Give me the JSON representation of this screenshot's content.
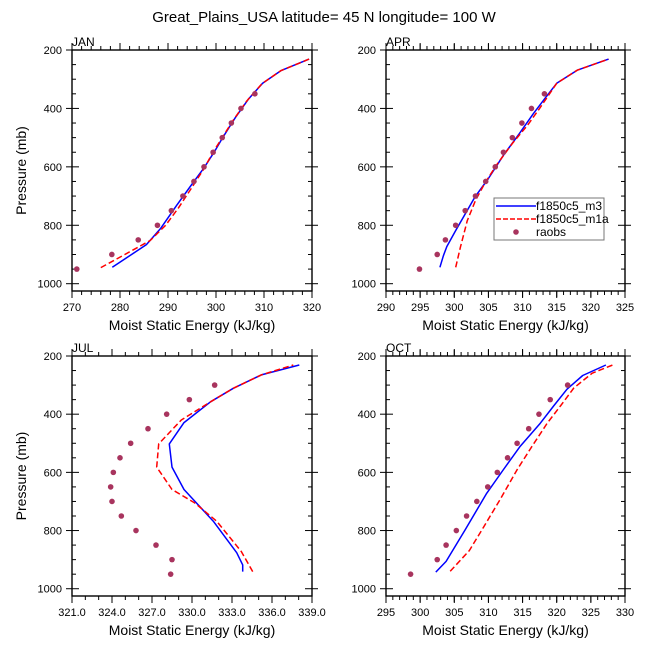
{
  "figure_title": "Great_Plains_USA  latitude= 45 N longitude= 100 W",
  "colors": {
    "f1850c5_m3": "#0000ff",
    "f1850c5_m1a": "#ff0000",
    "raobs": "#a8345e"
  },
  "legend": {
    "entries": [
      {
        "name": "f1850c5_m3",
        "style": "solid line"
      },
      {
        "name": "f1850c5_m1a",
        "style": "dashed line"
      },
      {
        "name": "raobs",
        "style": "marker"
      }
    ]
  },
  "chart_data": [
    {
      "type": "line",
      "title": "JAN",
      "xlabel": "Moist Static Energy (kJ/kg)",
      "ylabel": "Pressure (mb)",
      "xlim": [
        270,
        320
      ],
      "ylim": [
        200,
        1025
      ],
      "y_inverted": true,
      "xticks": [
        270,
        280,
        290,
        300,
        310,
        320
      ],
      "xtick_labels": [
        "270",
        "280",
        "290",
        "300",
        "310",
        "320"
      ],
      "x_minor_step": 2,
      "yticks": [
        200,
        400,
        600,
        800,
        1000
      ],
      "ytick_labels": [
        "200",
        "400",
        "600",
        "800",
        "1000"
      ],
      "y_minor_step": 50,
      "show_ylabel": true,
      "legend": false,
      "series": [
        {
          "name": "f1850c5_m3",
          "style": "solid",
          "x": [
            278.4,
            281.5,
            285.5,
            288.5,
            291.8,
            294.8,
            297.4,
            299.6,
            301.5,
            304.0,
            306.7,
            309.7,
            313.5,
            319.4
          ],
          "y": [
            944,
            910,
            866,
            810,
            732,
            664,
            606,
            550,
            497,
            432,
            369,
            314,
            271,
            231
          ]
        },
        {
          "name": "f1850c5_m1a",
          "style": "dashed",
          "x": [
            276.0,
            281.0,
            286.3,
            289.5,
            292.2,
            295.0,
            297.5,
            299.4,
            301.3,
            303.6,
            306.4,
            309.6,
            313.5,
            319.4
          ],
          "y": [
            945,
            900,
            852,
            800,
            740,
            670,
            606,
            550,
            500,
            440,
            375,
            315,
            271,
            231
          ]
        },
        {
          "name": "raobs",
          "style": "marker",
          "x": [
            271.0,
            278.3,
            283.8,
            287.8,
            290.7,
            293.1,
            295.4,
            297.5,
            299.4,
            301.3,
            303.2,
            305.2,
            308.1
          ],
          "y": [
            950,
            900,
            850,
            800,
            750,
            700,
            650,
            600,
            550,
            500,
            450,
            400,
            350
          ]
        }
      ]
    },
    {
      "type": "line",
      "title": "APR",
      "xlabel": "Moist Static Energy (kJ/kg)",
      "ylabel": "",
      "xlim": [
        290,
        325
      ],
      "ylim": [
        200,
        1025
      ],
      "y_inverted": true,
      "xticks": [
        290,
        295,
        300,
        305,
        310,
        315,
        320,
        325
      ],
      "xtick_labels": [
        "290",
        "295",
        "300",
        "305",
        "310",
        "315",
        "320",
        "325"
      ],
      "x_minor_step": 1,
      "yticks": [
        200,
        400,
        600,
        800,
        1000
      ],
      "ytick_labels": [
        "200",
        "400",
        "600",
        "800",
        "1000"
      ],
      "y_minor_step": 50,
      "show_ylabel": false,
      "legend": true,
      "legend_position": "center-right",
      "series": [
        {
          "name": "f1850c5_m3",
          "style": "solid",
          "x": [
            297.9,
            298.4,
            298.9,
            300.2,
            303.0,
            305.0,
            307.2,
            309.5,
            311.6,
            313.3,
            315.0,
            318.0,
            322.6
          ],
          "y": [
            944,
            904,
            873,
            818,
            704,
            640,
            560,
            487,
            417,
            365,
            314,
            269,
            231
          ]
        },
        {
          "name": "f1850c5_m1a",
          "style": "dashed",
          "x": [
            300.2,
            300.9,
            301.9,
            303.1,
            304.5,
            306.3,
            308.5,
            310.7,
            312.5,
            315.0,
            318.0,
            322.6
          ],
          "y": [
            944,
            875,
            784,
            715,
            655,
            590,
            520,
            458,
            400,
            314,
            269,
            231
          ]
        },
        {
          "name": "raobs",
          "style": "marker",
          "x": [
            294.9,
            297.5,
            298.7,
            300.2,
            301.6,
            303.1,
            304.6,
            306.0,
            307.2,
            308.5,
            309.9,
            311.3,
            313.2
          ],
          "y": [
            950,
            900,
            850,
            800,
            750,
            700,
            650,
            600,
            550,
            500,
            450,
            400,
            350
          ]
        }
      ]
    },
    {
      "type": "line",
      "title": "JUL",
      "xlabel": "Moist Static Energy (kJ/kg)",
      "ylabel": "Pressure (mb)",
      "xlim": [
        321.0,
        339.0
      ],
      "ylim": [
        200,
        1025
      ],
      "y_inverted": true,
      "xticks": [
        321,
        324,
        327,
        330,
        333,
        336,
        339
      ],
      "xtick_labels": [
        "321.0",
        "324.0",
        "327.0",
        "330.0",
        "333.0",
        "336.0",
        "339.0"
      ],
      "x_minor_step": 1,
      "yticks": [
        200,
        400,
        600,
        800,
        1000
      ],
      "ytick_labels": [
        "200",
        "400",
        "600",
        "800",
        "1000"
      ],
      "y_minor_step": 50,
      "show_ylabel": true,
      "legend": false,
      "series": [
        {
          "name": "f1850c5_m3",
          "style": "solid",
          "x": [
            333.8,
            333.8,
            333.35,
            331.6,
            329.4,
            328.5,
            328.3,
            329.4,
            331.4,
            333.1,
            335.2,
            338.05
          ],
          "y": [
            941,
            918,
            876,
            768,
            659,
            582,
            502,
            429,
            357,
            311,
            265,
            231
          ]
        },
        {
          "name": "f1850c5_m1a",
          "style": "dashed",
          "x": [
            334.55,
            333.7,
            331.85,
            330.2,
            328.5,
            327.35,
            327.5,
            329.2,
            331.4,
            333.1,
            335.2,
            337.6
          ],
          "y": [
            941,
            872,
            768,
            705,
            659,
            582,
            502,
            420,
            357,
            311,
            265,
            231
          ]
        },
        {
          "name": "raobs",
          "style": "marker",
          "x": [
            328.4,
            328.5,
            327.3,
            325.8,
            324.7,
            324.0,
            323.9,
            324.1,
            324.6,
            325.4,
            326.7,
            328.1,
            329.8,
            331.7
          ],
          "y": [
            950,
            900,
            850,
            800,
            750,
            700,
            650,
            600,
            550,
            500,
            450,
            400,
            350,
            300
          ]
        }
      ]
    },
    {
      "type": "line",
      "title": "OCT",
      "xlabel": "Moist Static Energy (kJ/kg)",
      "ylabel": "",
      "xlim": [
        295,
        330
      ],
      "ylim": [
        200,
        1025
      ],
      "y_inverted": true,
      "xticks": [
        295,
        300,
        305,
        310,
        315,
        320,
        325,
        330
      ],
      "xtick_labels": [
        "295",
        "300",
        "305",
        "310",
        "315",
        "320",
        "325",
        "330"
      ],
      "x_minor_step": 1,
      "yticks": [
        200,
        400,
        600,
        800,
        1000
      ],
      "ytick_labels": [
        "200",
        "400",
        "600",
        "800",
        "1000"
      ],
      "y_minor_step": 50,
      "show_ylabel": false,
      "legend": false,
      "series": [
        {
          "name": "f1850c5_m3",
          "style": "solid",
          "x": [
            302.3,
            303.8,
            306.6,
            309.75,
            312.2,
            314.6,
            317.6,
            319.6,
            321.5,
            323.8,
            327.2
          ],
          "y": [
            943,
            906,
            797,
            672,
            590,
            512,
            431,
            370,
            314,
            267,
            231
          ]
        },
        {
          "name": "f1850c5_m1a",
          "style": "dashed",
          "x": [
            304.4,
            307.2,
            309.3,
            311.8,
            314.2,
            316.4,
            318.6,
            320.6,
            322.5,
            325.2,
            328.2
          ],
          "y": [
            940,
            869,
            788,
            690,
            591,
            510,
            431,
            370,
            310,
            259,
            231
          ]
        },
        {
          "name": "raobs",
          "style": "marker",
          "x": [
            298.6,
            302.5,
            303.8,
            305.3,
            306.8,
            308.3,
            309.9,
            311.3,
            312.8,
            314.2,
            315.9,
            317.4,
            319.05,
            321.6
          ],
          "y": [
            950,
            900,
            850,
            800,
            750,
            700,
            650,
            600,
            550,
            500,
            450,
            400,
            350,
            300
          ]
        }
      ]
    }
  ]
}
